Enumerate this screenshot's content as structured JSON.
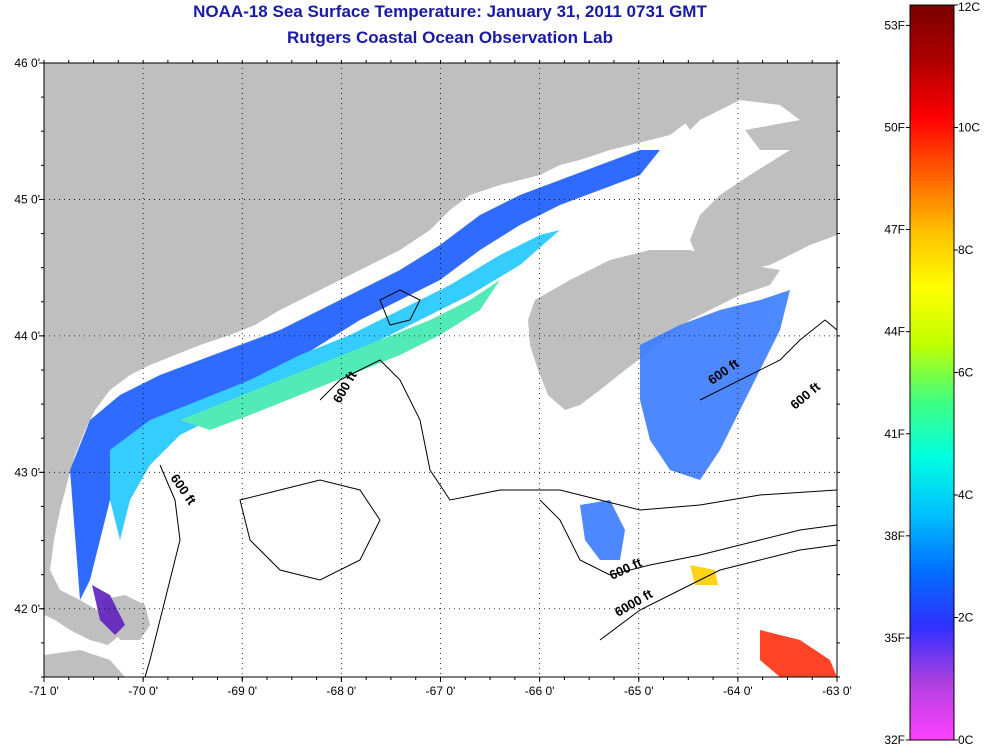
{
  "title": "NOAA-18 Sea Surface Temperature:  January 31, 2011 0731 GMT",
  "subtitle": "Rutgers Coastal Ocean Observation Lab",
  "map": {
    "lon_range": [
      -71,
      -63
    ],
    "lat_range": [
      41.5,
      46
    ],
    "x_ticks": [
      "-71 0'",
      "-70 0'",
      "-69 0'",
      "-68 0'",
      "-67 0'",
      "-66 0'",
      "-65 0'",
      "-64 0'",
      "-63 0'"
    ],
    "y_ticks": [
      "46 0'",
      "45 0'",
      "44 0'",
      "43 0'",
      "42 0'"
    ],
    "land_color": "#bfbfbf",
    "ocean_color": "#ffffff",
    "contour_labels": [
      "600 ft",
      "600 ft",
      "600 ft",
      "600 ft",
      "600 ft",
      "6000 ft"
    ]
  },
  "colorbar": {
    "min_c": 0,
    "max_c": 12,
    "celsius_labels": [
      "12C",
      "10C",
      "8C",
      "6C",
      "4C",
      "2C",
      "0C"
    ],
    "fahrenheit_labels": [
      "53F",
      "50F",
      "47F",
      "44F",
      "41F",
      "38F",
      "35F",
      "32F"
    ],
    "colors": [
      "#ff40ff",
      "#b040e0",
      "#3030ff",
      "#0070ff",
      "#00c0ff",
      "#00ffe0",
      "#40ff80",
      "#c0ff00",
      "#ffff00",
      "#ffc000",
      "#ff6000",
      "#ff0000",
      "#b00000",
      "#7a0000"
    ]
  }
}
